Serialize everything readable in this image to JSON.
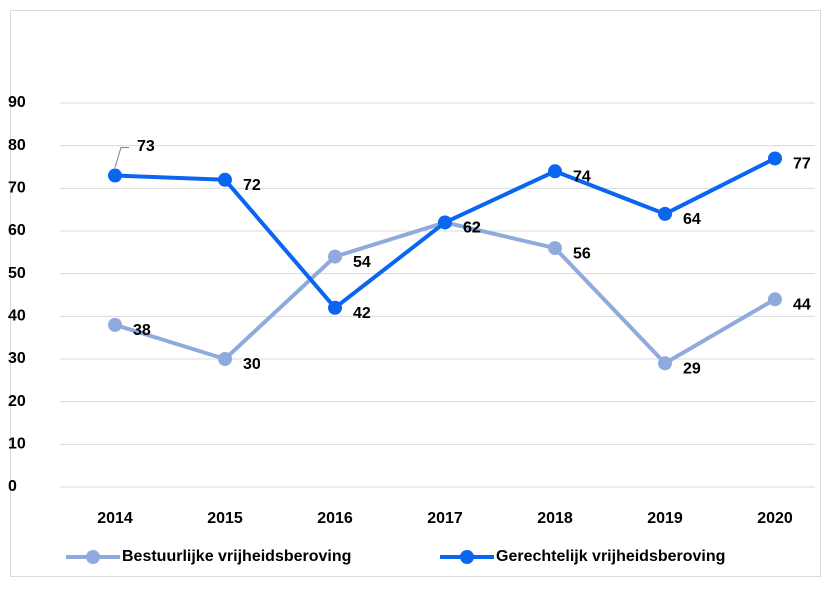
{
  "chart_data": {
    "type": "line",
    "categories": [
      "2014",
      "2015",
      "2016",
      "2017",
      "2018",
      "2019",
      "2020"
    ],
    "series": [
      {
        "name": "Bestuurlijke vrijheidsberoving",
        "color": "#8faadc",
        "values": [
          38,
          30,
          54,
          62,
          56,
          29,
          44
        ]
      },
      {
        "name": "Gerechtelijk vrijheidsberoving",
        "color": "#0a66f0",
        "values": [
          73,
          72,
          42,
          62,
          74,
          64,
          77
        ]
      }
    ],
    "ylim": [
      0,
      90
    ],
    "yticks": [
      0,
      10,
      20,
      30,
      40,
      50,
      60,
      70,
      80,
      90
    ],
    "grid": true,
    "legend": "bottom"
  }
}
